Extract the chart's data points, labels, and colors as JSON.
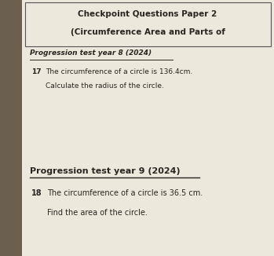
{
  "bg_color": "#c8bfad",
  "paper_bg": "#ede8dc",
  "title_line1": "Checkpoint Questions Paper 2",
  "title_line2": "(Circumference Area and Parts of",
  "section1_heading": "Progression test year 8 (2024)",
  "q17_num": "17",
  "q17_text": "The circumference of a circle is 136.4cm.",
  "q17_sub": "Calculate the radius of the circle.",
  "section2_heading": "Progression test year 9 (2024)",
  "q18_num": "18",
  "q18_text": "The circumference of a circle is 36.5 cm.",
  "q18_sub": "Find the area of the circle.",
  "spine_color": "#6b6050",
  "text_color": "#2a2520",
  "border_color": "#555555"
}
